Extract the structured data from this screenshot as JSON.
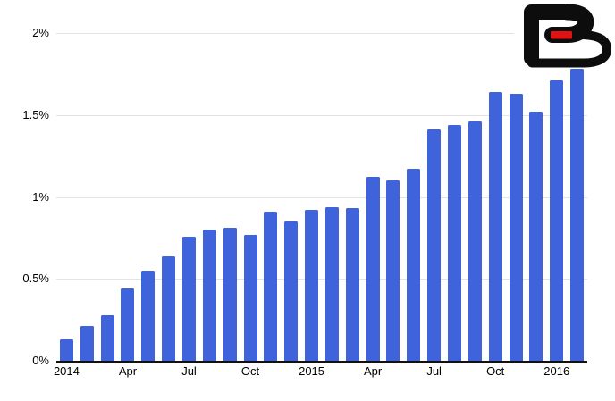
{
  "chart_data": {
    "type": "bar",
    "title": "",
    "xlabel": "",
    "ylabel": "",
    "unit": "%",
    "x": [
      "Jan 2014",
      "Feb 2014",
      "Mar 2014",
      "Apr 2014",
      "May 2014",
      "Jun 2014",
      "Jul 2014",
      "Aug 2014",
      "Sep 2014",
      "Oct 2014",
      "Nov 2014",
      "Dec 2014",
      "Jan 2015",
      "Feb 2015",
      "Mar 2015",
      "Apr 2015",
      "May 2015",
      "Jun 2015",
      "Jul 2015",
      "Aug 2015",
      "Sep 2015",
      "Oct 2015",
      "Nov 2015",
      "Dec 2015",
      "Jan 2016",
      "Feb 2016"
    ],
    "values": [
      0.13,
      0.21,
      0.28,
      0.44,
      0.55,
      0.64,
      0.76,
      0.8,
      0.81,
      0.77,
      0.91,
      0.85,
      0.92,
      0.94,
      0.93,
      1.12,
      1.1,
      1.17,
      1.41,
      1.44,
      1.46,
      1.64,
      1.63,
      1.52,
      1.71,
      1.78
    ],
    "x_tick_labels": [
      {
        "index": 0,
        "label": "2014"
      },
      {
        "index": 3,
        "label": "Apr"
      },
      {
        "index": 6,
        "label": "Jul"
      },
      {
        "index": 9,
        "label": "Oct"
      },
      {
        "index": 12,
        "label": "2015"
      },
      {
        "index": 15,
        "label": "Apr"
      },
      {
        "index": 18,
        "label": "Jul"
      },
      {
        "index": 21,
        "label": "Oct"
      },
      {
        "index": 24,
        "label": "2016"
      }
    ],
    "y_ticks": [
      {
        "value": 0,
        "label": "0%"
      },
      {
        "value": 0.5,
        "label": "0.5%"
      },
      {
        "value": 1,
        "label": "1%"
      },
      {
        "value": 1.5,
        "label": "1.5%"
      },
      {
        "value": 2,
        "label": "2%"
      }
    ],
    "ylim": [
      0,
      2
    ],
    "grid": true,
    "legend_position": "none"
  },
  "colors": {
    "bar": "#3E63DB",
    "gridline": "#e3e3e3",
    "axis_line": "#111111",
    "tick_text": "#000000",
    "background": "#ffffff",
    "logo_black": "#0d0d0d",
    "logo_red": "#e01313"
  },
  "logo": {
    "name": "bitcoinist-b-logo"
  }
}
